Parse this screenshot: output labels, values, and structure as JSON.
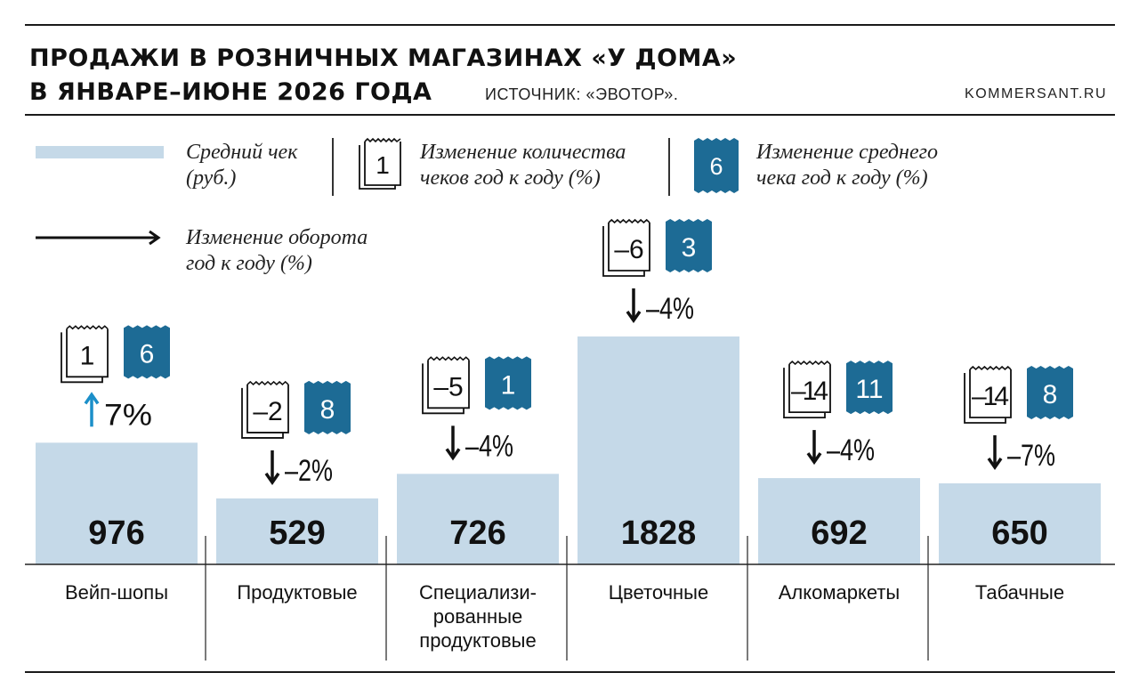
{
  "header": {
    "title_line1": "ПРОДАЖИ В РОЗНИЧНЫХ МАГАЗИНАХ «У ДОМА»",
    "title_line2": "В ЯНВАРЕ–ИЮНЕ 2026 ГОДА",
    "source": "ИСТОЧНИК: «ЭВОТОР».",
    "site": "KOMMERSANT.RU"
  },
  "legend": {
    "avg_check_line1": "Средний чек",
    "avg_check_line2": "(руб.)",
    "checks_change_line1": "Изменение количества",
    "checks_change_line2": "чеков год к году (%)",
    "checks_change_sample": "1",
    "avg_check_change_line1": "Изменение среднего",
    "avg_check_change_line2": "чека год к году (%)",
    "avg_check_change_sample": "6",
    "turnover_line1": "Изменение оборота",
    "turnover_line2": "год к году (%)"
  },
  "colors": {
    "bar": "#c5d9e8",
    "badge": "#1d6b95",
    "arrow_up": "#1b8fc9",
    "arrow_down": "#111111"
  },
  "chart_data": {
    "type": "bar",
    "title": "ПРОДАЖИ В РОЗНИЧНЫХ МАГАЗИНАХ «У ДОМА» В ЯНВАРЕ–ИЮНЕ 2026 ГОДА",
    "categories": [
      "Вейп-шопы",
      "Продуктовые",
      "Специализи-\nрованные\nпродуктовые",
      "Цветочные",
      "Алкомаркеты",
      "Табачные"
    ],
    "series": [
      {
        "name": "Средний чек (руб.)",
        "values": [
          976,
          529,
          726,
          1828,
          692,
          650
        ]
      }
    ],
    "checks_change_pct": [
      1,
      -2,
      -5,
      -6,
      -14,
      -14
    ],
    "avg_check_change_pct": [
      6,
      8,
      1,
      3,
      11,
      8
    ],
    "turnover_change_pct": [
      7,
      -2,
      -4,
      -4,
      -4,
      -7
    ],
    "turnover_labels": [
      "7%",
      "–2%",
      "–4%",
      "–4%",
      "–4%",
      "–7%"
    ],
    "checks_labels": [
      "1",
      "–2",
      "–5",
      "–6",
      "–14",
      "–14"
    ],
    "avg_check_labels": [
      "6",
      "8",
      "1",
      "3",
      "11",
      "8"
    ],
    "ylim": [
      0,
      1828
    ],
    "grid": false,
    "legend": "top"
  }
}
